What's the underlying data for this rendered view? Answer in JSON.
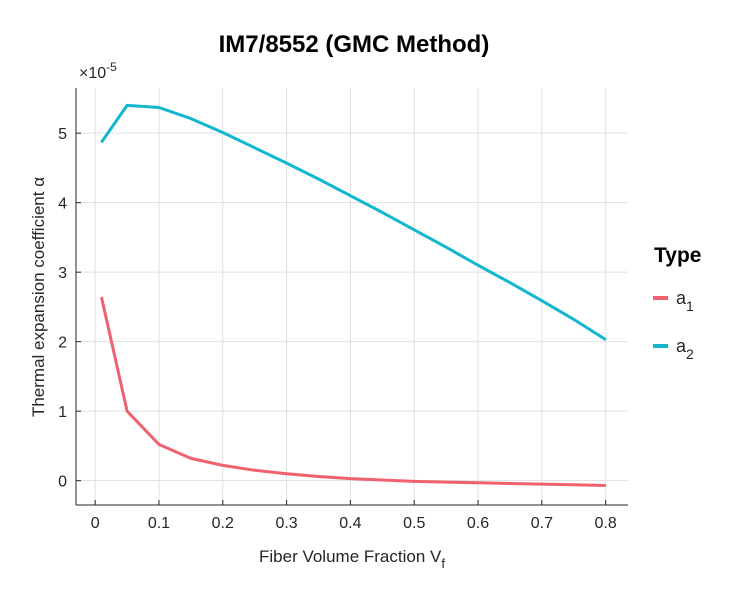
{
  "chart_data": {
    "type": "line",
    "title": "IM7/8552 (GMC Method)",
    "xlabel": "Fiber Volume Fraction V",
    "xlabel_sub": "f",
    "ylabel": "Thermal expansion coefficient α",
    "y_exponent": "×10-5",
    "y_exponent_base": "×10",
    "y_exponent_power": "-5",
    "xlim": [
      -0.03,
      0.835
    ],
    "ylim": [
      -0.35,
      5.65
    ],
    "xticks": [
      "0",
      "0.1",
      "0.2",
      "0.3",
      "0.4",
      "0.5",
      "0.6",
      "0.7",
      "0.8"
    ],
    "yticks": [
      "0",
      "1",
      "2",
      "3",
      "4",
      "5"
    ],
    "grid": true,
    "legend": {
      "title": "Type",
      "position": "right",
      "entries": [
        {
          "base": "a",
          "sub": "1"
        },
        {
          "base": "a",
          "sub": "2"
        }
      ]
    },
    "series": [
      {
        "name": "a1",
        "color": "#f0616e",
        "x": [
          0.01,
          0.05,
          0.1,
          0.15,
          0.2,
          0.25,
          0.3,
          0.35,
          0.4,
          0.45,
          0.5,
          0.55,
          0.6,
          0.65,
          0.7,
          0.75,
          0.8
        ],
        "y": [
          2.64,
          1.0,
          0.52,
          0.32,
          0.22,
          0.15,
          0.1,
          0.06,
          0.03,
          0.01,
          -0.01,
          -0.02,
          -0.03,
          -0.04,
          -0.05,
          -0.06,
          -0.07
        ]
      },
      {
        "name": "a2",
        "color": "#13b6cf",
        "x": [
          0.01,
          0.05,
          0.1,
          0.15,
          0.2,
          0.25,
          0.3,
          0.35,
          0.4,
          0.45,
          0.5,
          0.55,
          0.6,
          0.65,
          0.7,
          0.75,
          0.8
        ],
        "y": [
          4.87,
          5.4,
          5.37,
          5.21,
          5.01,
          4.79,
          4.57,
          4.34,
          4.1,
          3.86,
          3.61,
          3.36,
          3.1,
          2.85,
          2.59,
          2.32,
          2.03
        ]
      }
    ]
  }
}
